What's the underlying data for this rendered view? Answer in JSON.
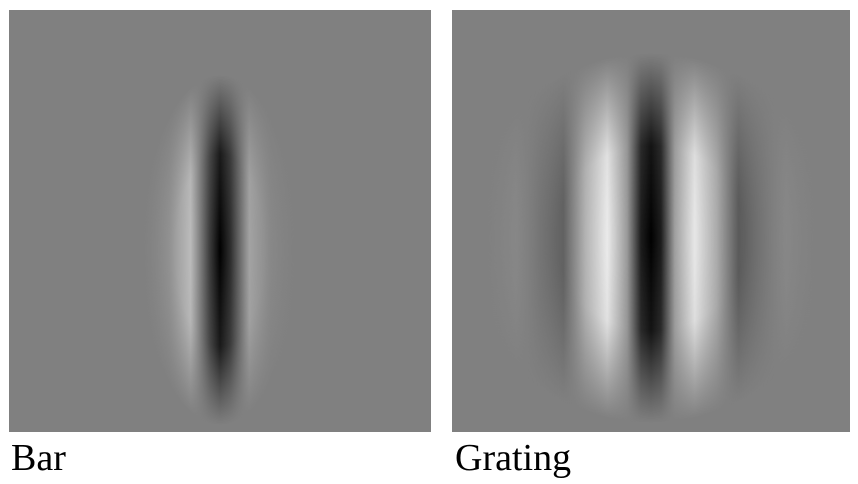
{
  "panels": [
    {
      "id": "bar",
      "label": "Bar",
      "stimulus": "gabor-bar",
      "background": "#808080"
    },
    {
      "id": "grating",
      "label": "Grating",
      "stimulus": "gabor-grating",
      "background": "#808080"
    }
  ]
}
